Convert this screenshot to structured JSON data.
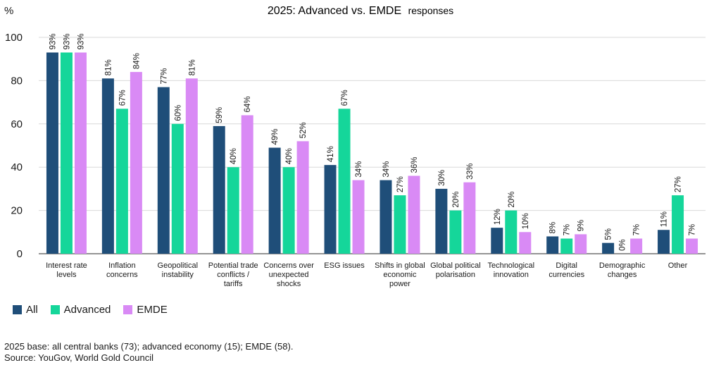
{
  "chart_data": {
    "type": "bar",
    "title": "2025: Advanced vs. EMDE",
    "subtitle": "responses",
    "ylabel": "%",
    "ylim": [
      0,
      100
    ],
    "yticks": [
      0,
      20,
      40,
      60,
      80,
      100
    ],
    "grid": true,
    "legend_position": "bottom-left",
    "categories": [
      [
        "Interest rate",
        "levels"
      ],
      [
        "Inflation",
        "concerns"
      ],
      [
        "Geopolitical",
        "instability"
      ],
      [
        "Potential trade",
        "conflicts /",
        "tariffs"
      ],
      [
        "Concerns over",
        "unexpected",
        "shocks"
      ],
      [
        "ESG issues"
      ],
      [
        "Shifts in global",
        "economic",
        "power"
      ],
      [
        "Global political",
        "polarisation"
      ],
      [
        "Technological",
        "innovation"
      ],
      [
        "Digital",
        "currencies"
      ],
      [
        "Demographic",
        "changes"
      ],
      [
        "Other"
      ]
    ],
    "series": [
      {
        "name": "All",
        "color": "#1f4e79",
        "values": [
          93,
          81,
          77,
          59,
          49,
          41,
          34,
          30,
          12,
          8,
          5,
          11
        ]
      },
      {
        "name": "Advanced",
        "color": "#15d69a",
        "values": [
          93,
          67,
          60,
          40,
          40,
          67,
          27,
          20,
          20,
          7,
          0,
          27
        ]
      },
      {
        "name": "EMDE",
        "color": "#d98af5",
        "values": [
          93,
          84,
          81,
          64,
          52,
          34,
          36,
          33,
          10,
          9,
          7,
          7
        ]
      }
    ],
    "value_suffix": "%"
  },
  "footnotes": [
    "2025 base: all central banks (73); advanced economy (15); EMDE (58).",
    "Source: YouGov, World Gold Council"
  ]
}
